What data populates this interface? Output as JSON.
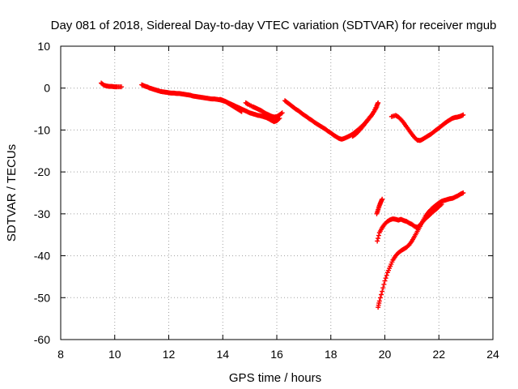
{
  "chart_data": {
    "type": "scatter",
    "title": "Day 081 of 2018, Sidereal Day-to-day VTEC variation (SDTVAR) for receiver mgub",
    "xlabel": "GPS time / hours",
    "ylabel": "SDTVAR / TECUs",
    "xlim": [
      8,
      24
    ],
    "ylim": [
      -60,
      10
    ],
    "x_ticks": [
      8,
      10,
      12,
      14,
      16,
      18,
      20,
      22,
      24
    ],
    "y_ticks": [
      10,
      0,
      -10,
      -20,
      -30,
      -40,
      -50,
      -60
    ],
    "x_tick_labels": [
      "8",
      "10",
      "12",
      "14",
      "16",
      "18",
      "20",
      "22",
      "24"
    ],
    "y_tick_labels": [
      "10",
      "0",
      "-10",
      "-20",
      "-30",
      "-40",
      "-50",
      "-60"
    ],
    "grid": true,
    "grid_style": "dotted",
    "marker": "+",
    "color": "#ff0000",
    "series": [
      {
        "points": [
          [
            9.5,
            1.2
          ],
          [
            9.6,
            0.7
          ],
          [
            9.7,
            0.5
          ],
          [
            9.8,
            0.4
          ],
          [
            9.9,
            0.4
          ],
          [
            10.0,
            0.3
          ],
          [
            10.1,
            0.3
          ],
          [
            10.25,
            0.3
          ]
        ]
      },
      {
        "points": [
          [
            11.0,
            0.8
          ],
          [
            11.1,
            0.5
          ],
          [
            11.2,
            0.3
          ],
          [
            11.3,
            0.0
          ],
          [
            11.4,
            -0.2
          ],
          [
            11.5,
            -0.4
          ],
          [
            11.6,
            -0.6
          ],
          [
            11.7,
            -0.8
          ],
          [
            11.8,
            -0.9
          ],
          [
            11.9,
            -1.0
          ],
          [
            12.0,
            -1.1
          ],
          [
            12.1,
            -1.2
          ],
          [
            12.2,
            -1.2
          ],
          [
            12.3,
            -1.3
          ],
          [
            12.4,
            -1.3
          ],
          [
            12.5,
            -1.4
          ],
          [
            12.6,
            -1.5
          ],
          [
            12.7,
            -1.6
          ],
          [
            12.8,
            -1.7
          ],
          [
            12.9,
            -1.9
          ],
          [
            13.0,
            -2.0
          ],
          [
            13.1,
            -2.1
          ],
          [
            13.2,
            -2.2
          ],
          [
            13.3,
            -2.3
          ],
          [
            13.4,
            -2.4
          ],
          [
            13.5,
            -2.5
          ],
          [
            13.6,
            -2.6
          ],
          [
            13.7,
            -2.6
          ],
          [
            13.8,
            -2.7
          ],
          [
            13.9,
            -2.8
          ],
          [
            14.0,
            -3.0
          ],
          [
            14.1,
            -3.2
          ],
          [
            14.2,
            -3.5
          ],
          [
            14.3,
            -3.8
          ],
          [
            14.4,
            -4.1
          ],
          [
            14.5,
            -4.4
          ],
          [
            14.6,
            -4.7
          ],
          [
            14.7,
            -5.0
          ],
          [
            14.8,
            -5.3
          ],
          [
            14.9,
            -5.6
          ],
          [
            15.0,
            -5.9
          ],
          [
            15.1,
            -6.1
          ],
          [
            15.2,
            -6.3
          ],
          [
            15.3,
            -6.5
          ],
          [
            15.4,
            -6.6
          ],
          [
            15.5,
            -6.8
          ],
          [
            15.6,
            -7.0
          ],
          [
            15.7,
            -7.3
          ],
          [
            15.8,
            -7.7
          ],
          [
            15.9,
            -8.0
          ],
          [
            16.0,
            -7.8
          ],
          [
            16.1,
            -7.2
          ]
        ]
      },
      {
        "points": [
          [
            13.9,
            -2.7
          ],
          [
            14.0,
            -2.9
          ],
          [
            14.1,
            -3.2
          ],
          [
            14.2,
            -3.6
          ],
          [
            14.3,
            -4.0
          ],
          [
            14.4,
            -4.4
          ],
          [
            14.5,
            -4.8
          ],
          [
            14.6,
            -5.2
          ],
          [
            14.7,
            -5.6
          ]
        ]
      },
      {
        "points": [
          [
            14.85,
            -3.5
          ],
          [
            14.95,
            -3.9
          ],
          [
            15.1,
            -4.4
          ],
          [
            15.2,
            -4.7
          ],
          [
            15.3,
            -5.0
          ],
          [
            15.4,
            -5.3
          ],
          [
            15.5,
            -5.7
          ],
          [
            15.6,
            -6.1
          ],
          [
            15.7,
            -6.4
          ],
          [
            15.8,
            -6.7
          ],
          [
            15.9,
            -6.9
          ],
          [
            16.0,
            -6.8
          ],
          [
            16.1,
            -6.4
          ],
          [
            16.2,
            -5.9
          ]
        ]
      },
      {
        "points": [
          [
            16.3,
            -3.0
          ],
          [
            16.4,
            -3.5
          ],
          [
            16.5,
            -4.0
          ],
          [
            16.6,
            -4.5
          ],
          [
            16.7,
            -5.0
          ],
          [
            16.8,
            -5.4
          ],
          [
            16.9,
            -5.9
          ],
          [
            17.0,
            -6.4
          ],
          [
            17.1,
            -6.8
          ],
          [
            17.2,
            -7.3
          ],
          [
            17.3,
            -7.7
          ],
          [
            17.4,
            -8.2
          ],
          [
            17.5,
            -8.6
          ],
          [
            17.6,
            -9.0
          ],
          [
            17.7,
            -9.4
          ],
          [
            17.8,
            -9.8
          ],
          [
            17.9,
            -10.3
          ],
          [
            18.0,
            -10.7
          ],
          [
            18.1,
            -11.2
          ],
          [
            18.2,
            -11.6
          ],
          [
            18.3,
            -12.0
          ],
          [
            18.4,
            -12.2
          ],
          [
            18.5,
            -12.0
          ],
          [
            18.6,
            -11.7
          ],
          [
            18.7,
            -11.4
          ],
          [
            18.8,
            -11.0
          ],
          [
            18.9,
            -10.5
          ],
          [
            19.0,
            -10.0
          ],
          [
            19.1,
            -9.4
          ],
          [
            19.2,
            -8.8
          ],
          [
            19.3,
            -8.1
          ],
          [
            19.4,
            -7.3
          ],
          [
            19.5,
            -6.5
          ],
          [
            19.6,
            -5.6
          ],
          [
            19.7,
            -4.5
          ]
        ]
      },
      {
        "points": [
          [
            18.8,
            -11.5
          ],
          [
            18.9,
            -11.1
          ],
          [
            19.0,
            -10.5
          ],
          [
            19.1,
            -9.8
          ],
          [
            19.2,
            -9.0
          ],
          [
            19.3,
            -8.2
          ],
          [
            19.4,
            -7.4
          ],
          [
            19.5,
            -6.6
          ],
          [
            19.6,
            -5.6
          ],
          [
            19.7,
            -4.2
          ],
          [
            19.75,
            -3.5
          ]
        ]
      },
      {
        "points": [
          [
            20.25,
            -6.8
          ],
          [
            20.4,
            -6.5
          ],
          [
            20.5,
            -6.9
          ],
          [
            20.6,
            -7.5
          ],
          [
            20.7,
            -8.3
          ],
          [
            20.8,
            -9.2
          ],
          [
            20.9,
            -10.1
          ],
          [
            21.0,
            -11.0
          ],
          [
            21.1,
            -11.8
          ],
          [
            21.2,
            -12.4
          ],
          [
            21.3,
            -12.5
          ],
          [
            21.4,
            -12.2
          ],
          [
            21.5,
            -11.8
          ],
          [
            21.6,
            -11.4
          ],
          [
            21.7,
            -11.0
          ],
          [
            21.8,
            -10.5
          ],
          [
            21.9,
            -10.0
          ],
          [
            22.0,
            -9.5
          ],
          [
            22.1,
            -9.0
          ],
          [
            22.2,
            -8.5
          ],
          [
            22.3,
            -8.0
          ],
          [
            22.4,
            -7.6
          ],
          [
            22.5,
            -7.2
          ],
          [
            22.6,
            -7.0
          ],
          [
            22.7,
            -6.9
          ],
          [
            22.8,
            -6.7
          ],
          [
            22.9,
            -6.4
          ]
        ]
      },
      {
        "points": [
          [
            19.7,
            -30.0
          ],
          [
            19.75,
            -29.0
          ],
          [
            19.8,
            -28.0
          ],
          [
            19.85,
            -27.2
          ],
          [
            19.9,
            -26.5
          ]
        ]
      },
      {
        "points": [
          [
            19.72,
            -36.5
          ],
          [
            19.8,
            -34.5
          ],
          [
            19.9,
            -33.3
          ],
          [
            20.0,
            -32.4
          ],
          [
            20.1,
            -31.8
          ],
          [
            20.2,
            -31.4
          ],
          [
            20.3,
            -31.2
          ],
          [
            20.4,
            -31.3
          ],
          [
            20.5,
            -31.5
          ],
          [
            20.6,
            -31.3
          ],
          [
            20.7,
            -31.6
          ],
          [
            20.8,
            -31.8
          ],
          [
            20.9,
            -32.2
          ],
          [
            21.0,
            -32.5
          ],
          [
            21.1,
            -33.0
          ],
          [
            21.2,
            -33.2
          ],
          [
            21.3,
            -32.7
          ],
          [
            21.4,
            -31.9
          ],
          [
            21.5,
            -31.2
          ],
          [
            21.6,
            -30.6
          ],
          [
            21.7,
            -30.0
          ],
          [
            21.8,
            -29.4
          ],
          [
            21.9,
            -28.9
          ],
          [
            22.0,
            -28.3
          ],
          [
            22.1,
            -27.7
          ]
        ]
      },
      {
        "points": [
          [
            19.75,
            -52.3
          ],
          [
            19.8,
            -50.8
          ],
          [
            19.9,
            -48.5
          ],
          [
            20.0,
            -46.0
          ],
          [
            20.1,
            -44.0
          ],
          [
            20.2,
            -42.5
          ],
          [
            20.3,
            -41.0
          ],
          [
            20.4,
            -40.0
          ],
          [
            20.5,
            -39.3
          ],
          [
            20.6,
            -38.8
          ],
          [
            20.7,
            -38.4
          ],
          [
            20.8,
            -38.0
          ],
          [
            20.9,
            -37.4
          ],
          [
            21.0,
            -36.5
          ],
          [
            21.1,
            -35.4
          ],
          [
            21.2,
            -34.2
          ],
          [
            21.3,
            -33.0
          ],
          [
            21.4,
            -31.8
          ],
          [
            21.5,
            -30.6
          ],
          [
            21.6,
            -29.7
          ],
          [
            21.7,
            -29.0
          ],
          [
            21.8,
            -28.4
          ],
          [
            21.9,
            -27.9
          ],
          [
            22.0,
            -27.4
          ],
          [
            22.1,
            -27.0
          ],
          [
            22.2,
            -26.8
          ],
          [
            22.3,
            -26.6
          ],
          [
            22.4,
            -26.4
          ],
          [
            22.5,
            -26.3
          ],
          [
            22.6,
            -26.0
          ],
          [
            22.7,
            -25.7
          ],
          [
            22.8,
            -25.3
          ],
          [
            22.9,
            -25.0
          ]
        ]
      }
    ]
  }
}
